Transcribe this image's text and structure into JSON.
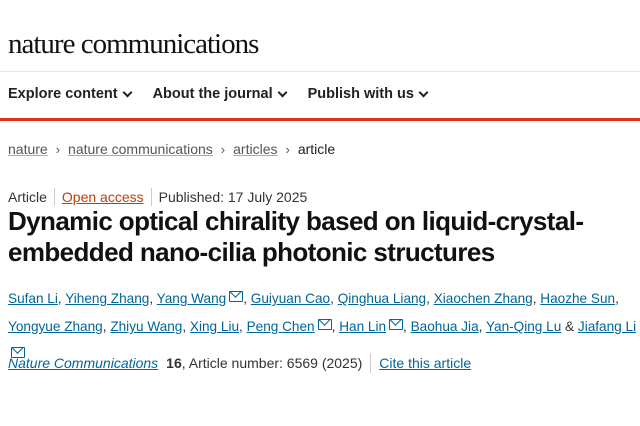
{
  "header": {
    "logo": "nature communications"
  },
  "nav": [
    {
      "label": "Explore content"
    },
    {
      "label": "About the journal"
    },
    {
      "label": "Publish with us"
    }
  ],
  "breadcrumb": [
    {
      "label": "nature"
    },
    {
      "label": "nature communications"
    },
    {
      "label": "articles"
    },
    {
      "label": "article"
    }
  ],
  "meta": {
    "type": "Article",
    "access": "Open access",
    "published": "Published: 17 July 2025"
  },
  "title": "Dynamic optical chirality based on liquid-crystal-embedded nano-cilia photonic structures",
  "authors": [
    {
      "name": "Sufan Li",
      "mail": false
    },
    {
      "name": "Yiheng Zhang",
      "mail": false
    },
    {
      "name": "Yang Wang",
      "mail": true
    },
    {
      "name": "Guiyuan Cao",
      "mail": false
    },
    {
      "name": "Qinghua Liang",
      "mail": false
    },
    {
      "name": "Xiaochen Zhang",
      "mail": false
    },
    {
      "name": "Haozhe Sun",
      "mail": false
    },
    {
      "name": "Yongyue Zhang",
      "mail": false
    },
    {
      "name": "Zhiyu Wang",
      "mail": false
    },
    {
      "name": "Xing Liu",
      "mail": false
    },
    {
      "name": "Peng Chen",
      "mail": true
    },
    {
      "name": "Han Lin",
      "mail": true
    },
    {
      "name": "Baohua Jia",
      "mail": false
    },
    {
      "name": "Yan-Qing Lu",
      "mail": false
    },
    {
      "name": "Jiafang Li",
      "mail": true
    }
  ],
  "citation": {
    "journal": "Nature Communications",
    "volume": "16",
    "article_number": ", Article number: 6569 (2025)",
    "cite_link": "Cite this article"
  },
  "colors": {
    "accent_red": "#e0301e",
    "link_blue": "#006699",
    "open_access": "#b7410e"
  }
}
